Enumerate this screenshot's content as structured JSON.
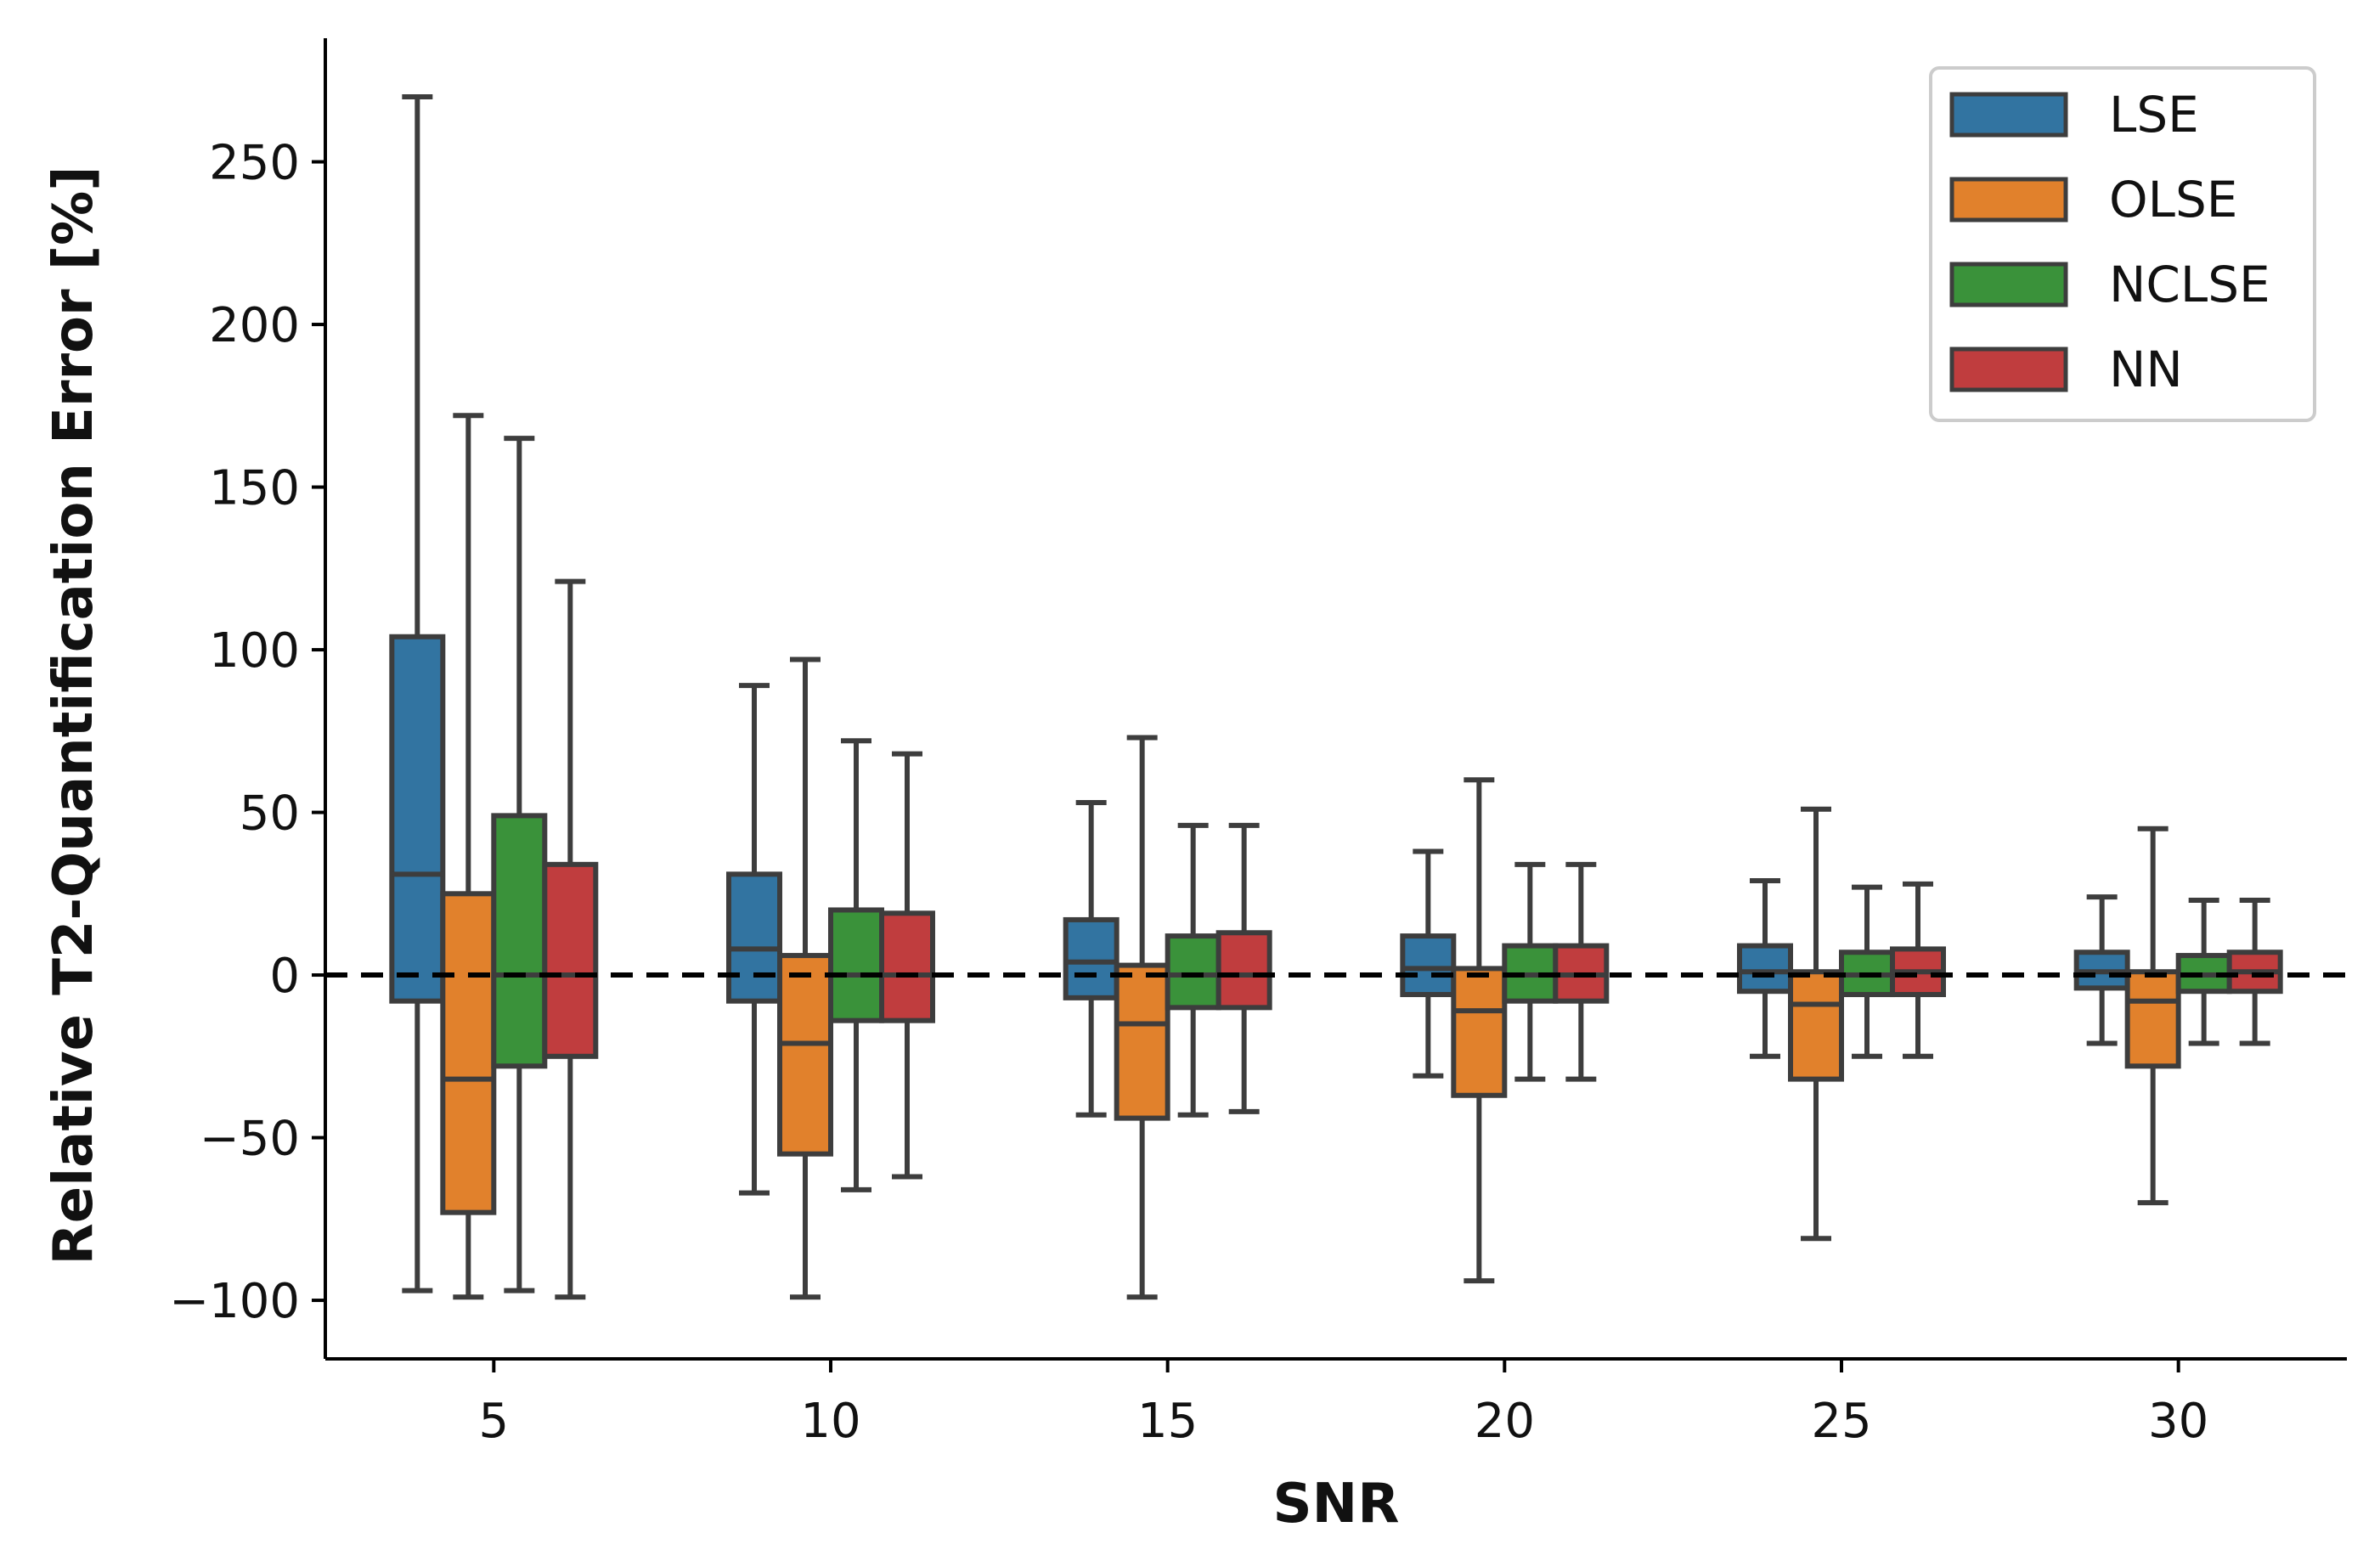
{
  "chart_data": {
    "type": "box",
    "title": "",
    "xlabel": "SNR",
    "ylabel": "Relative T2-Quantification Error [%]",
    "ylim": [
      -118,
      288
    ],
    "yticks": [
      -100,
      -50,
      0,
      50,
      100,
      150,
      200,
      250
    ],
    "ytick_labels": [
      "−100",
      "−50",
      "0",
      "50",
      "100",
      "150",
      "200",
      "250"
    ],
    "categories": [
      "5",
      "10",
      "15",
      "20",
      "25",
      "30"
    ],
    "reference_line": {
      "y": 0,
      "style": "dashed",
      "color": "#000000"
    },
    "legend_position": "top-right",
    "series": [
      {
        "name": "LSE",
        "color": "#3274a1",
        "boxes": [
          {
            "whisker_low": -97,
            "q1": -8,
            "median": 31,
            "q3": 104,
            "whisker_high": 270
          },
          {
            "whisker_low": -67,
            "q1": -8,
            "median": 8,
            "q3": 31,
            "whisker_high": 89
          },
          {
            "whisker_low": -43,
            "q1": -7,
            "median": 4,
            "q3": 17,
            "whisker_high": 53
          },
          {
            "whisker_low": -31,
            "q1": -6,
            "median": 2,
            "q3": 12,
            "whisker_high": 38
          },
          {
            "whisker_low": -25,
            "q1": -5,
            "median": 1,
            "q3": 9,
            "whisker_high": 29
          },
          {
            "whisker_low": -21,
            "q1": -4,
            "median": 1,
            "q3": 7,
            "whisker_high": 24
          }
        ]
      },
      {
        "name": "OLSE",
        "color": "#e1812c",
        "boxes": [
          {
            "whisker_low": -99,
            "q1": -73,
            "median": -32,
            "q3": 25,
            "whisker_high": 172
          },
          {
            "whisker_low": -99,
            "q1": -55,
            "median": -21,
            "q3": 6,
            "whisker_high": 97
          },
          {
            "whisker_low": -99,
            "q1": -44,
            "median": -15,
            "q3": 3,
            "whisker_high": 73
          },
          {
            "whisker_low": -94,
            "q1": -37,
            "median": -11,
            "q3": 2,
            "whisker_high": 60
          },
          {
            "whisker_low": -81,
            "q1": -32,
            "median": -9,
            "q3": 1,
            "whisker_high": 51
          },
          {
            "whisker_low": -70,
            "q1": -28,
            "median": -8,
            "q3": 1,
            "whisker_high": 45
          }
        ]
      },
      {
        "name": "NCLSE",
        "color": "#3a923a",
        "boxes": [
          {
            "whisker_low": -97,
            "q1": -28,
            "median": 0,
            "q3": 49,
            "whisker_high": 165
          },
          {
            "whisker_low": -66,
            "q1": -14,
            "median": 0,
            "q3": 20,
            "whisker_high": 72
          },
          {
            "whisker_low": -43,
            "q1": -10,
            "median": 0,
            "q3": 12,
            "whisker_high": 46
          },
          {
            "whisker_low": -32,
            "q1": -8,
            "median": 0,
            "q3": 9,
            "whisker_high": 34
          },
          {
            "whisker_low": -25,
            "q1": -6,
            "median": 0,
            "q3": 7,
            "whisker_high": 27
          },
          {
            "whisker_low": -21,
            "q1": -5,
            "median": 0,
            "q3": 6,
            "whisker_high": 23
          }
        ]
      },
      {
        "name": "NN",
        "color": "#c03d3e",
        "boxes": [
          {
            "whisker_low": -99,
            "q1": -25,
            "median": 0,
            "q3": 34,
            "whisker_high": 121
          },
          {
            "whisker_low": -62,
            "q1": -14,
            "median": 0,
            "q3": 19,
            "whisker_high": 68
          },
          {
            "whisker_low": -42,
            "q1": -10,
            "median": 0,
            "q3": 13,
            "whisker_high": 46
          },
          {
            "whisker_low": -32,
            "q1": -8,
            "median": 0,
            "q3": 9,
            "whisker_high": 34
          },
          {
            "whisker_low": -25,
            "q1": -6,
            "median": 1,
            "q3": 8,
            "whisker_high": 28
          },
          {
            "whisker_low": -21,
            "q1": -5,
            "median": 1,
            "q3": 7,
            "whisker_high": 23
          }
        ]
      }
    ]
  }
}
